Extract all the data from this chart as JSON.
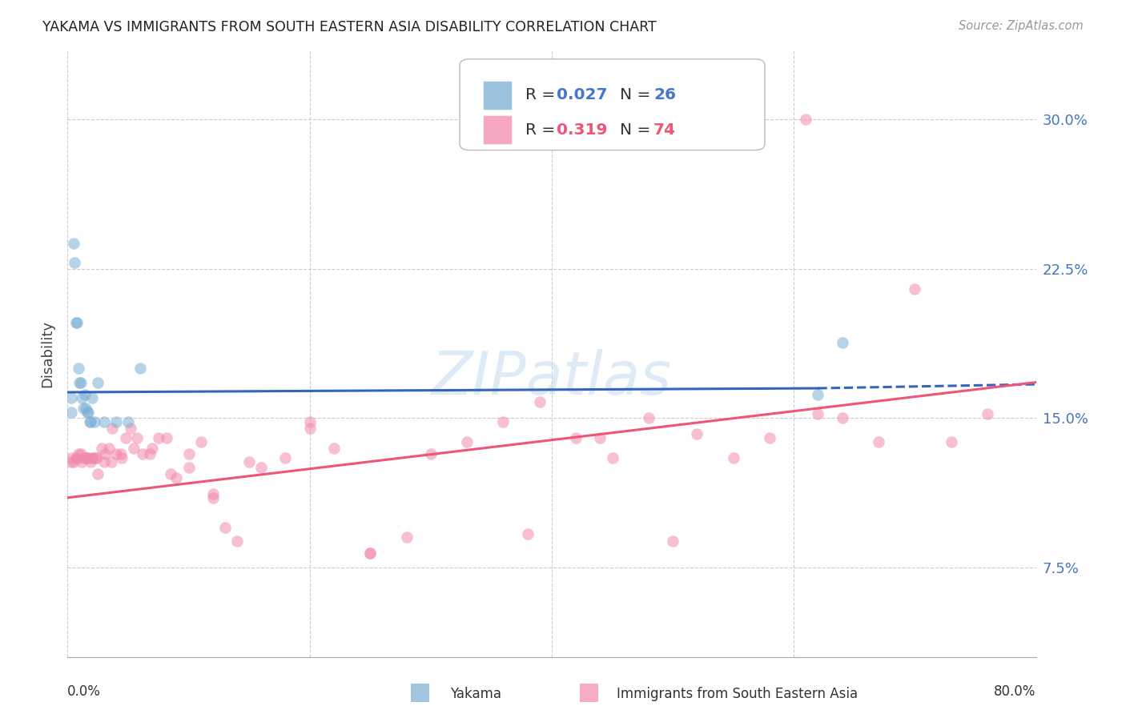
{
  "title": "YAKAMA VS IMMIGRANTS FROM SOUTH EASTERN ASIA DISABILITY CORRELATION CHART",
  "source": "Source: ZipAtlas.com",
  "ylabel": "Disability",
  "yticks": [
    0.075,
    0.15,
    0.225,
    0.3
  ],
  "ytick_labels": [
    "7.5%",
    "15.0%",
    "22.5%",
    "30.0%"
  ],
  "xlim": [
    0.0,
    0.8
  ],
  "ylim": [
    0.03,
    0.335
  ],
  "yakama_color": "#7BAFD4",
  "immigrants_color": "#F28BAB",
  "trend_yakama_color": "#3366BB",
  "trend_immigrants_color": "#EE5577",
  "background_color": "#FFFFFF",
  "grid_color": "#CCCCCC",
  "watermark_color": "#C8DFF0",
  "title_color": "#222222",
  "source_color": "#999999",
  "axis_label_color": "#4477BB",
  "yakama_points_x": [
    0.003,
    0.003,
    0.005,
    0.006,
    0.007,
    0.008,
    0.009,
    0.01,
    0.011,
    0.012,
    0.013,
    0.014,
    0.015,
    0.016,
    0.017,
    0.018,
    0.019,
    0.02,
    0.022,
    0.025,
    0.03,
    0.04,
    0.05,
    0.06,
    0.62,
    0.64
  ],
  "yakama_points_y": [
    0.16,
    0.153,
    0.238,
    0.228,
    0.198,
    0.198,
    0.175,
    0.168,
    0.168,
    0.16,
    0.155,
    0.162,
    0.155,
    0.153,
    0.153,
    0.148,
    0.148,
    0.16,
    0.148,
    0.168,
    0.148,
    0.148,
    0.148,
    0.175,
    0.162,
    0.188
  ],
  "immigrants_points_x": [
    0.003,
    0.005,
    0.007,
    0.009,
    0.011,
    0.013,
    0.015,
    0.017,
    0.019,
    0.021,
    0.023,
    0.025,
    0.028,
    0.031,
    0.034,
    0.037,
    0.04,
    0.044,
    0.048,
    0.052,
    0.057,
    0.062,
    0.068,
    0.075,
    0.082,
    0.09,
    0.1,
    0.11,
    0.12,
    0.13,
    0.14,
    0.16,
    0.18,
    0.2,
    0.22,
    0.25,
    0.28,
    0.3,
    0.33,
    0.36,
    0.39,
    0.42,
    0.45,
    0.48,
    0.5,
    0.52,
    0.55,
    0.58,
    0.61,
    0.64,
    0.67,
    0.7,
    0.73,
    0.76,
    0.003,
    0.008,
    0.012,
    0.016,
    0.02,
    0.024,
    0.03,
    0.036,
    0.045,
    0.055,
    0.07,
    0.085,
    0.1,
    0.12,
    0.15,
    0.2,
    0.25,
    0.38,
    0.44,
    0.62
  ],
  "immigrants_points_y": [
    0.128,
    0.128,
    0.13,
    0.132,
    0.132,
    0.13,
    0.13,
    0.13,
    0.128,
    0.13,
    0.13,
    0.122,
    0.135,
    0.132,
    0.135,
    0.145,
    0.132,
    0.132,
    0.14,
    0.145,
    0.14,
    0.132,
    0.132,
    0.14,
    0.14,
    0.12,
    0.132,
    0.138,
    0.112,
    0.095,
    0.088,
    0.125,
    0.13,
    0.145,
    0.135,
    0.082,
    0.09,
    0.132,
    0.138,
    0.148,
    0.158,
    0.14,
    0.13,
    0.15,
    0.088,
    0.142,
    0.13,
    0.14,
    0.3,
    0.15,
    0.138,
    0.215,
    0.138,
    0.152,
    0.13,
    0.13,
    0.128,
    0.13,
    0.13,
    0.13,
    0.128,
    0.128,
    0.13,
    0.135,
    0.135,
    0.122,
    0.125,
    0.11,
    0.128,
    0.148,
    0.082,
    0.092,
    0.14,
    0.152
  ],
  "trend_yakama_x0": 0.0,
  "trend_yakama_x_split": 0.62,
  "trend_yakama_x1": 0.8,
  "trend_yakama_y0": 0.163,
  "trend_yakama_y_split": 0.165,
  "trend_yakama_y1": 0.167,
  "trend_imm_x0": 0.0,
  "trend_imm_x1": 0.8,
  "trend_imm_y0": 0.11,
  "trend_imm_y1": 0.168,
  "leg_r1": "0.027",
  "leg_n1": "26",
  "leg_r2": "0.319",
  "leg_n2": "74",
  "leg_color1": "#4477CC",
  "leg_color2": "#EE5577"
}
